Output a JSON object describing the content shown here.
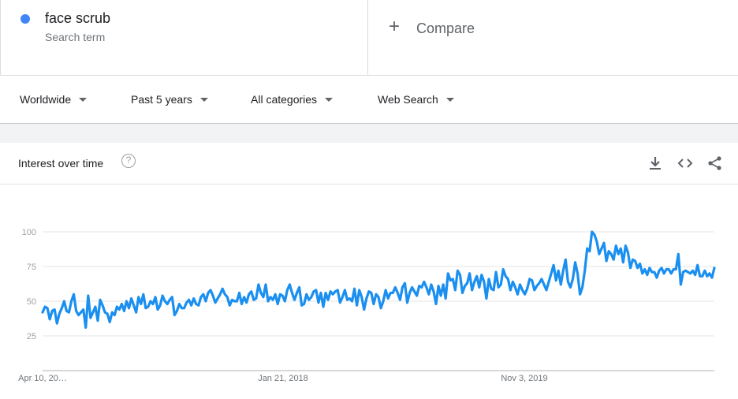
{
  "search": {
    "terms": [
      {
        "label": "face scrub",
        "sublabel": "Search term",
        "color": "#4285f4"
      }
    ],
    "compare_label": "Compare",
    "compare_icon": "plus-icon"
  },
  "filters": [
    {
      "label": "Worldwide"
    },
    {
      "label": "Past 5 years"
    },
    {
      "label": "All categories"
    },
    {
      "label": "Web Search"
    }
  ],
  "card": {
    "title": "Interest over time",
    "help_glyph": "?",
    "icons": [
      "download-icon",
      "embed-icon",
      "share-icon"
    ]
  },
  "chart_data": {
    "type": "line",
    "title": "Interest over time",
    "xlabel": "",
    "ylabel": "",
    "ylim": [
      0,
      100
    ],
    "y_ticks": [
      "25",
      "50",
      "75",
      "100"
    ],
    "x_tick_labels": [
      "Apr 10, 20…",
      "Jan 21, 2018",
      "Nov 3, 2019"
    ],
    "grid": true,
    "series": [
      {
        "name": "face scrub",
        "color": "#1a8ff0",
        "values": [
          42,
          46,
          45,
          37,
          43,
          44,
          34,
          41,
          45,
          50,
          43,
          42,
          50,
          55,
          43,
          40,
          42,
          44,
          31,
          54,
          38,
          42,
          46,
          36,
          51,
          47,
          42,
          41,
          35,
          42,
          40,
          46,
          44,
          48,
          43,
          50,
          45,
          52,
          47,
          42,
          53,
          48,
          55,
          45,
          46,
          50,
          48,
          53,
          44,
          47,
          54,
          50,
          48,
          51,
          53,
          40,
          43,
          48,
          45,
          45,
          49,
          51,
          47,
          52,
          48,
          47,
          53,
          55,
          50,
          56,
          58,
          54,
          49,
          52,
          55,
          59,
          55,
          53,
          47,
          51,
          50,
          50,
          56,
          48,
          53,
          49,
          55,
          57,
          51,
          52,
          62,
          56,
          53,
          62,
          50,
          53,
          51,
          55,
          48,
          55,
          54,
          50,
          58,
          62,
          56,
          51,
          56,
          60,
          47,
          48,
          55,
          51,
          53,
          57,
          58,
          49,
          56,
          46,
          56,
          51,
          57,
          55,
          57,
          58,
          49,
          53,
          58,
          51,
          52,
          50,
          59,
          47,
          58,
          53,
          44,
          52,
          57,
          56,
          48,
          55,
          53,
          45,
          50,
          58,
          52,
          56,
          56,
          60,
          56,
          51,
          60,
          63,
          49,
          56,
          60,
          57,
          54,
          61,
          60,
          64,
          60,
          55,
          62,
          57,
          48,
          61,
          54,
          62,
          52,
          70,
          65,
          66,
          58,
          72,
          69,
          56,
          61,
          63,
          70,
          58,
          64,
          68,
          60,
          69,
          64,
          52,
          66,
          59,
          58,
          71,
          60,
          62,
          73,
          68,
          66,
          58,
          64,
          60,
          55,
          62,
          58,
          55,
          59,
          66,
          65,
          58,
          61,
          63,
          66,
          62,
          58,
          64,
          70,
          76,
          65,
          72,
          62,
          72,
          80,
          64,
          60,
          66,
          78,
          70,
          55,
          60,
          72,
          88,
          86,
          100,
          98,
          93,
          84,
          88,
          92,
          79,
          86,
          84,
          80,
          90,
          84,
          88,
          78,
          90,
          85,
          74,
          80,
          79,
          74,
          77,
          70,
          73,
          69,
          74,
          71,
          71,
          67,
          72,
          74,
          70,
          73,
          73,
          70,
          73,
          73,
          84,
          62,
          71,
          72,
          71,
          70,
          72,
          69,
          76,
          68,
          68,
          72,
          68,
          70,
          67,
          74
        ]
      }
    ]
  }
}
